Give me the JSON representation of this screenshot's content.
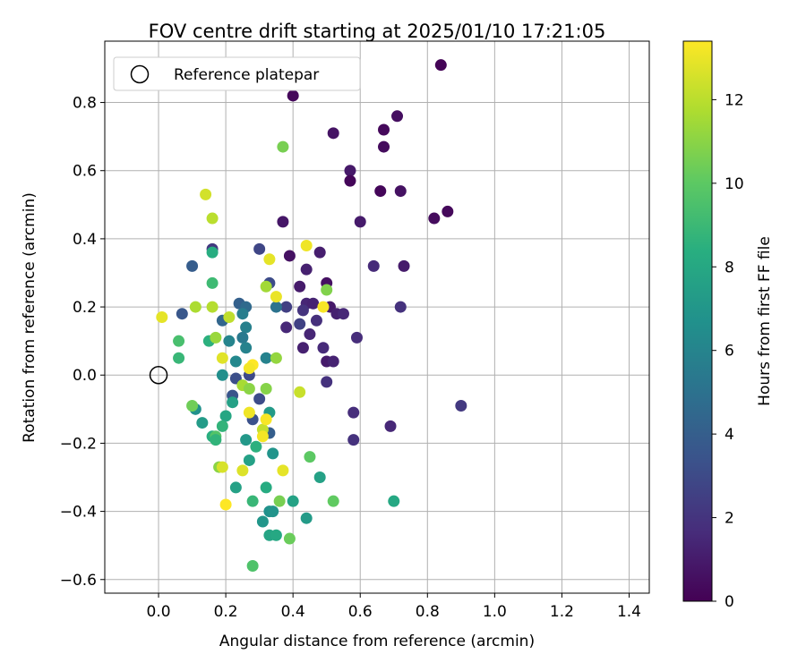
{
  "chart_data": {
    "type": "scatter",
    "title": "FOV centre drift starting at 2025/01/10 17:21:05",
    "xlabel": "Angular distance from reference (arcmin)",
    "ylabel": "Rotation from reference (arcmin)",
    "xlim": [
      -0.16,
      1.46
    ],
    "ylim": [
      -0.64,
      0.98
    ],
    "x_ticks": [
      0.0,
      0.2,
      0.4,
      0.6,
      0.8,
      1.0,
      1.2,
      1.4
    ],
    "x_tick_labels": [
      "0.0",
      "0.2",
      "0.4",
      "0.6",
      "0.8",
      "1.0",
      "1.2",
      "1.4"
    ],
    "y_ticks": [
      -0.6,
      -0.4,
      -0.2,
      0.0,
      0.2,
      0.4,
      0.6,
      0.8
    ],
    "y_tick_labels": [
      "−0.6",
      "−0.4",
      "−0.2",
      "0.0",
      "0.2",
      "0.4",
      "0.6",
      "0.8"
    ],
    "grid": true,
    "legend": {
      "placement": "upper-left",
      "entries": [
        "Reference platepar"
      ]
    },
    "reference_point": {
      "x": 0.0,
      "y": 0.0
    },
    "colorbar": {
      "label": "Hours from first FF file",
      "min": 0,
      "max": 13.4,
      "ticks": [
        0,
        2,
        4,
        6,
        8,
        10,
        12
      ],
      "tick_labels": [
        "0",
        "2",
        "4",
        "6",
        "8",
        "10",
        "12"
      ],
      "colormap": "viridis"
    },
    "points": [
      {
        "x": 0.84,
        "y": 0.91,
        "t": 0.1
      },
      {
        "x": 0.4,
        "y": 0.82,
        "t": 0.3
      },
      {
        "x": 0.71,
        "y": 0.76,
        "t": 0.5
      },
      {
        "x": 0.52,
        "y": 0.71,
        "t": 0.7
      },
      {
        "x": 0.67,
        "y": 0.72,
        "t": 0.3
      },
      {
        "x": 0.67,
        "y": 0.67,
        "t": 0.4
      },
      {
        "x": 0.57,
        "y": 0.6,
        "t": 0.9
      },
      {
        "x": 0.57,
        "y": 0.57,
        "t": 0.2
      },
      {
        "x": 0.66,
        "y": 0.54,
        "t": 0.2
      },
      {
        "x": 0.72,
        "y": 0.54,
        "t": 0.6
      },
      {
        "x": 0.86,
        "y": 0.48,
        "t": 0.3
      },
      {
        "x": 0.82,
        "y": 0.46,
        "t": 0.4
      },
      {
        "x": 0.6,
        "y": 0.45,
        "t": 1.0
      },
      {
        "x": 0.37,
        "y": 0.45,
        "t": 0.8
      },
      {
        "x": 0.39,
        "y": 0.35,
        "t": 0.6
      },
      {
        "x": 0.48,
        "y": 0.36,
        "t": 1.1
      },
      {
        "x": 0.64,
        "y": 0.32,
        "t": 1.6
      },
      {
        "x": 0.73,
        "y": 0.32,
        "t": 1.0
      },
      {
        "x": 0.44,
        "y": 0.31,
        "t": 1.2
      },
      {
        "x": 0.5,
        "y": 0.27,
        "t": 0.6
      },
      {
        "x": 0.42,
        "y": 0.26,
        "t": 1.0
      },
      {
        "x": 0.72,
        "y": 0.2,
        "t": 1.9
      },
      {
        "x": 0.44,
        "y": 0.21,
        "t": 1.4
      },
      {
        "x": 0.46,
        "y": 0.21,
        "t": 1.3
      },
      {
        "x": 0.51,
        "y": 0.2,
        "t": 0.9
      },
      {
        "x": 0.53,
        "y": 0.18,
        "t": 1.2
      },
      {
        "x": 0.55,
        "y": 0.18,
        "t": 1.5
      },
      {
        "x": 0.43,
        "y": 0.19,
        "t": 2.0
      },
      {
        "x": 0.38,
        "y": 0.2,
        "t": 2.5
      },
      {
        "x": 0.47,
        "y": 0.16,
        "t": 1.8
      },
      {
        "x": 0.42,
        "y": 0.15,
        "t": 2.6
      },
      {
        "x": 0.38,
        "y": 0.14,
        "t": 1.5
      },
      {
        "x": 0.45,
        "y": 0.12,
        "t": 1.4
      },
      {
        "x": 0.59,
        "y": 0.11,
        "t": 1.7
      },
      {
        "x": 0.43,
        "y": 0.08,
        "t": 1.2
      },
      {
        "x": 0.49,
        "y": 0.08,
        "t": 1.6
      },
      {
        "x": 0.5,
        "y": 0.04,
        "t": 1.0
      },
      {
        "x": 0.52,
        "y": 0.04,
        "t": 1.3
      },
      {
        "x": 0.5,
        "y": -0.02,
        "t": 1.9
      },
      {
        "x": 0.58,
        "y": -0.11,
        "t": 1.7
      },
      {
        "x": 0.69,
        "y": -0.15,
        "t": 1.5
      },
      {
        "x": 0.58,
        "y": -0.19,
        "t": 1.9
      },
      {
        "x": 0.9,
        "y": -0.09,
        "t": 2.2
      },
      {
        "x": 0.3,
        "y": 0.37,
        "t": 2.8
      },
      {
        "x": 0.16,
        "y": 0.37,
        "t": 2.2
      },
      {
        "x": 0.33,
        "y": 0.27,
        "t": 3.1
      },
      {
        "x": 0.1,
        "y": 0.32,
        "t": 3.9
      },
      {
        "x": 0.24,
        "y": 0.21,
        "t": 4.1
      },
      {
        "x": 0.26,
        "y": 0.2,
        "t": 4.6
      },
      {
        "x": 0.35,
        "y": 0.2,
        "t": 5.1
      },
      {
        "x": 0.07,
        "y": 0.18,
        "t": 3.6
      },
      {
        "x": 0.19,
        "y": 0.16,
        "t": 4.4
      },
      {
        "x": 0.25,
        "y": 0.18,
        "t": 5.6
      },
      {
        "x": 0.26,
        "y": 0.14,
        "t": 5.8
      },
      {
        "x": 0.25,
        "y": 0.11,
        "t": 5.4
      },
      {
        "x": 0.21,
        "y": 0.1,
        "t": 6.0
      },
      {
        "x": 0.26,
        "y": 0.08,
        "t": 5.9
      },
      {
        "x": 0.23,
        "y": 0.04,
        "t": 6.2
      },
      {
        "x": 0.32,
        "y": 0.05,
        "t": 5.9
      },
      {
        "x": 0.27,
        "y": 0.0,
        "t": 3.0
      },
      {
        "x": 0.23,
        "y": -0.01,
        "t": 3.2
      },
      {
        "x": 0.19,
        "y": 0.0,
        "t": 6.6
      },
      {
        "x": 0.22,
        "y": -0.06,
        "t": 3.5
      },
      {
        "x": 0.3,
        "y": -0.07,
        "t": 3.1
      },
      {
        "x": 0.28,
        "y": -0.13,
        "t": 3.3
      },
      {
        "x": 0.33,
        "y": -0.17,
        "t": 4.0
      },
      {
        "x": 0.33,
        "y": -0.11,
        "t": 7.2
      },
      {
        "x": 0.22,
        "y": -0.08,
        "t": 7.6
      },
      {
        "x": 0.2,
        "y": -0.12,
        "t": 7.9
      },
      {
        "x": 0.11,
        "y": -0.1,
        "t": 6.7
      },
      {
        "x": 0.13,
        "y": -0.14,
        "t": 7.3
      },
      {
        "x": 0.16,
        "y": -0.18,
        "t": 8.4
      },
      {
        "x": 0.19,
        "y": -0.15,
        "t": 8.7
      },
      {
        "x": 0.26,
        "y": -0.19,
        "t": 7.1
      },
      {
        "x": 0.29,
        "y": -0.21,
        "t": 8.5
      },
      {
        "x": 0.27,
        "y": -0.25,
        "t": 7.6
      },
      {
        "x": 0.34,
        "y": -0.23,
        "t": 6.9
      },
      {
        "x": 0.23,
        "y": -0.33,
        "t": 7.6
      },
      {
        "x": 0.32,
        "y": -0.33,
        "t": 8.2
      },
      {
        "x": 0.31,
        "y": -0.43,
        "t": 7.0
      },
      {
        "x": 0.33,
        "y": -0.4,
        "t": 6.7
      },
      {
        "x": 0.34,
        "y": -0.4,
        "t": 6.9
      },
      {
        "x": 0.33,
        "y": -0.47,
        "t": 7.8
      },
      {
        "x": 0.35,
        "y": -0.47,
        "t": 8.0
      },
      {
        "x": 0.4,
        "y": -0.37,
        "t": 7.7
      },
      {
        "x": 0.44,
        "y": -0.42,
        "t": 7.3
      },
      {
        "x": 0.48,
        "y": -0.3,
        "t": 7.6
      },
      {
        "x": 0.7,
        "y": -0.37,
        "t": 8.0
      },
      {
        "x": 0.28,
        "y": -0.56,
        "t": 9.6
      },
      {
        "x": 0.39,
        "y": -0.48,
        "t": 10.3
      },
      {
        "x": 0.36,
        "y": -0.37,
        "t": 10.6
      },
      {
        "x": 0.52,
        "y": -0.37,
        "t": 10.1
      },
      {
        "x": 0.45,
        "y": -0.24,
        "t": 10.0
      },
      {
        "x": 0.28,
        "y": -0.37,
        "t": 8.9
      },
      {
        "x": 0.16,
        "y": 0.36,
        "t": 8.3
      },
      {
        "x": 0.16,
        "y": 0.27,
        "t": 9.1
      },
      {
        "x": 0.06,
        "y": 0.1,
        "t": 9.4
      },
      {
        "x": 0.06,
        "y": 0.05,
        "t": 8.9
      },
      {
        "x": 0.15,
        "y": 0.1,
        "t": 8.5
      },
      {
        "x": 0.17,
        "y": -0.18,
        "t": 9.7
      },
      {
        "x": 0.17,
        "y": -0.19,
        "t": 8.7
      },
      {
        "x": 0.37,
        "y": 0.67,
        "t": 10.6
      },
      {
        "x": 0.1,
        "y": -0.09,
        "t": 10.4
      },
      {
        "x": 0.32,
        "y": 0.26,
        "t": 11.5
      },
      {
        "x": 0.5,
        "y": 0.25,
        "t": 10.8
      },
      {
        "x": 0.11,
        "y": 0.2,
        "t": 11.7
      },
      {
        "x": 0.16,
        "y": 0.2,
        "t": 11.9
      },
      {
        "x": 0.17,
        "y": 0.11,
        "t": 11.3
      },
      {
        "x": 0.21,
        "y": 0.17,
        "t": 12.1
      },
      {
        "x": 0.35,
        "y": 0.05,
        "t": 11.2
      },
      {
        "x": 0.25,
        "y": -0.03,
        "t": 11.6
      },
      {
        "x": 0.27,
        "y": -0.04,
        "t": 11.0
      },
      {
        "x": 0.32,
        "y": -0.04,
        "t": 10.9
      },
      {
        "x": 0.31,
        "y": -0.16,
        "t": 12.2
      },
      {
        "x": 0.42,
        "y": -0.05,
        "t": 12.3
      },
      {
        "x": 0.18,
        "y": -0.27,
        "t": 11.0
      },
      {
        "x": 0.19,
        "y": -0.27,
        "t": 12.6
      },
      {
        "x": 0.14,
        "y": 0.53,
        "t": 12.5
      },
      {
        "x": 0.16,
        "y": 0.46,
        "t": 12.0
      },
      {
        "x": 0.33,
        "y": 0.34,
        "t": 12.9
      },
      {
        "x": 0.44,
        "y": 0.38,
        "t": 13.1
      },
      {
        "x": 0.49,
        "y": 0.2,
        "t": 13.3
      },
      {
        "x": 0.19,
        "y": 0.05,
        "t": 12.8
      },
      {
        "x": 0.28,
        "y": 0.03,
        "t": 13.4
      },
      {
        "x": 0.27,
        "y": 0.02,
        "t": 13.2
      },
      {
        "x": 0.35,
        "y": 0.23,
        "t": 13.0
      },
      {
        "x": 0.01,
        "y": 0.17,
        "t": 12.9
      },
      {
        "x": 0.27,
        "y": -0.11,
        "t": 13.1
      },
      {
        "x": 0.32,
        "y": -0.13,
        "t": 13.3
      },
      {
        "x": 0.31,
        "y": -0.18,
        "t": 13.2
      },
      {
        "x": 0.25,
        "y": -0.28,
        "t": 12.7
      },
      {
        "x": 0.37,
        "y": -0.28,
        "t": 12.9
      },
      {
        "x": 0.2,
        "y": -0.38,
        "t": 13.4
      }
    ]
  }
}
